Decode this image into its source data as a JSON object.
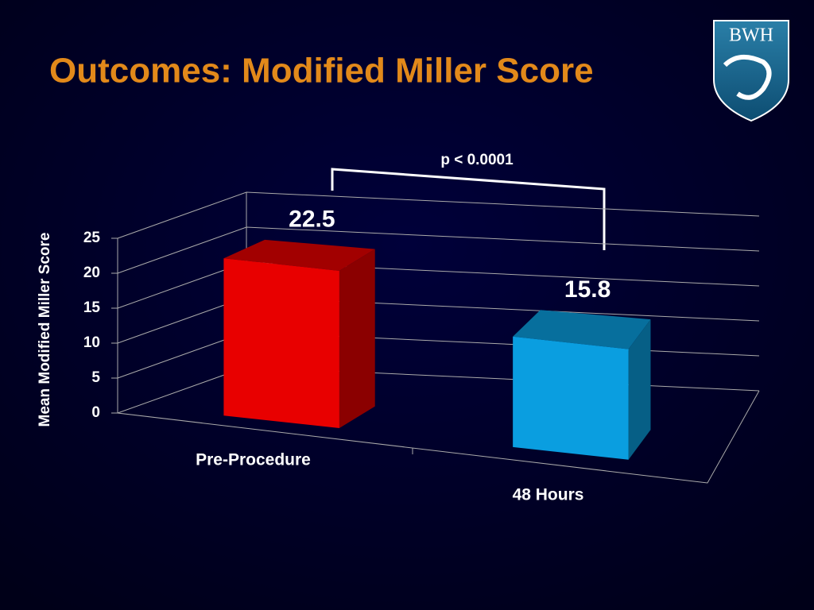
{
  "logo": {
    "text": "BWH"
  },
  "chart_data": {
    "type": "bar3d",
    "title": "Outcomes: Modified Miller Score",
    "y_label": "Mean Modified Miller Score",
    "categories": [
      "Pre-Procedure",
      "48 Hours"
    ],
    "values": [
      22.5,
      15.8
    ],
    "colors": [
      "#e80000",
      "#0a9ee0"
    ],
    "ylim": [
      0,
      25
    ],
    "yticks": [
      0,
      5,
      10,
      15,
      20,
      25
    ],
    "grid": true,
    "annotation": "p < 0.0001"
  }
}
